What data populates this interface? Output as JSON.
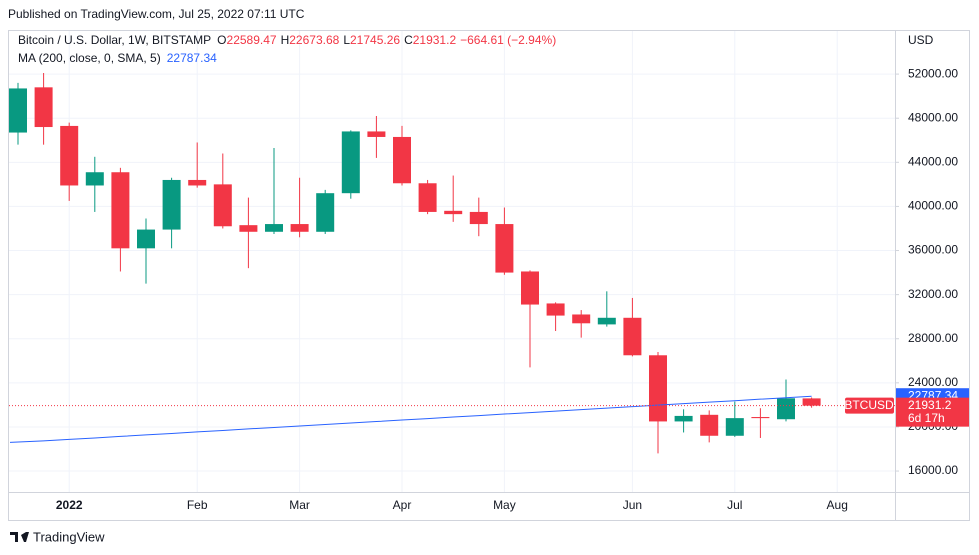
{
  "published": "Published on TradingView.com, Jul 25, 2022 07:11 UTC",
  "brand": "TradingView",
  "chart_data": {
    "type": "candlestick",
    "title": "Bitcoin / U.S. Dollar, 1W, BITSTAMP",
    "ohlc_labels": [
      "O",
      "H",
      "L",
      "C"
    ],
    "change_label": "−664.61 (−2.94%)",
    "currency": "USD",
    "symbol": "BTCUSD",
    "countdown": "6d 17h",
    "categories": [
      null,
      null,
      "2022",
      null,
      null,
      null,
      null,
      "Feb",
      null,
      null,
      null,
      "Mar",
      null,
      null,
      null,
      "Apr",
      null,
      null,
      null,
      "May",
      null,
      null,
      null,
      null,
      "Jun",
      null,
      null,
      null,
      "Jul",
      null,
      null,
      null,
      "Aug"
    ],
    "open": [
      46700,
      50800,
      47300,
      41900,
      43100,
      36200,
      37900,
      42400,
      42000,
      38300,
      37700,
      38400,
      37700,
      41200,
      46800,
      46300,
      42100,
      39600,
      39500,
      38400,
      34100,
      31200,
      30200,
      29300,
      29900,
      26500,
      20500,
      21100,
      19200,
      20900,
      20700,
      22589.47,
      null
    ],
    "high": [
      51200,
      52100,
      47600,
      44500,
      43500,
      38900,
      42600,
      45800,
      44800,
      40800,
      45300,
      42600,
      41500,
      46900,
      48200,
      47300,
      42400,
      42800,
      40800,
      39900,
      34200,
      31300,
      30600,
      32300,
      31700,
      26800,
      21600,
      21500,
      22300,
      21700,
      24300,
      22673.68,
      null
    ],
    "low": [
      45600,
      45600,
      40500,
      39500,
      34100,
      33000,
      36200,
      41700,
      38000,
      34400,
      37500,
      37200,
      37500,
      40700,
      44400,
      41900,
      39300,
      38600,
      37300,
      33800,
      25400,
      28700,
      28100,
      29100,
      26400,
      17600,
      19500,
      18600,
      19100,
      19000,
      20500,
      21745.26,
      null
    ],
    "close": [
      50700,
      47200,
      41900,
      43100,
      36200,
      37900,
      42400,
      41900,
      38200,
      37700,
      38400,
      37700,
      41200,
      46800,
      46300,
      42100,
      39500,
      39300,
      38400,
      34000,
      31100,
      30100,
      29400,
      29900,
      26500,
      20500,
      21000,
      19200,
      20800,
      20800,
      22600,
      21931.2,
      null
    ],
    "up_color": "#089981",
    "down_color": "#f23645",
    "indicator": {
      "name": "MA (200, close, 0, SMA, 5)",
      "color": "#2962ff",
      "values": [
        18600,
        18740,
        18870,
        19000,
        19140,
        19280,
        19410,
        19550,
        19680,
        19820,
        19950,
        20090,
        20220,
        20360,
        20490,
        20630,
        20760,
        20900,
        21030,
        21170,
        21300,
        21440,
        21570,
        21710,
        21840,
        21980,
        22110,
        22250,
        22380,
        22520,
        22650,
        22787.34,
        null
      ]
    },
    "ylim": [
      14100,
      56000
    ],
    "yticks": [
      {
        "value": 16000,
        "label": "16000.00"
      },
      {
        "value": 20000,
        "label": "20000.00"
      },
      {
        "value": 24000,
        "label": "24000.00"
      },
      {
        "value": 28000,
        "label": "28000.00"
      },
      {
        "value": 32000,
        "label": "32000.00"
      },
      {
        "value": 36000,
        "label": "36000.00"
      },
      {
        "value": 40000,
        "label": "40000.00"
      },
      {
        "value": 44000,
        "label": "44000.00"
      },
      {
        "value": 48000,
        "label": "48000.00"
      },
      {
        "value": 52000,
        "label": "52000.00"
      }
    ],
    "grid": true
  }
}
